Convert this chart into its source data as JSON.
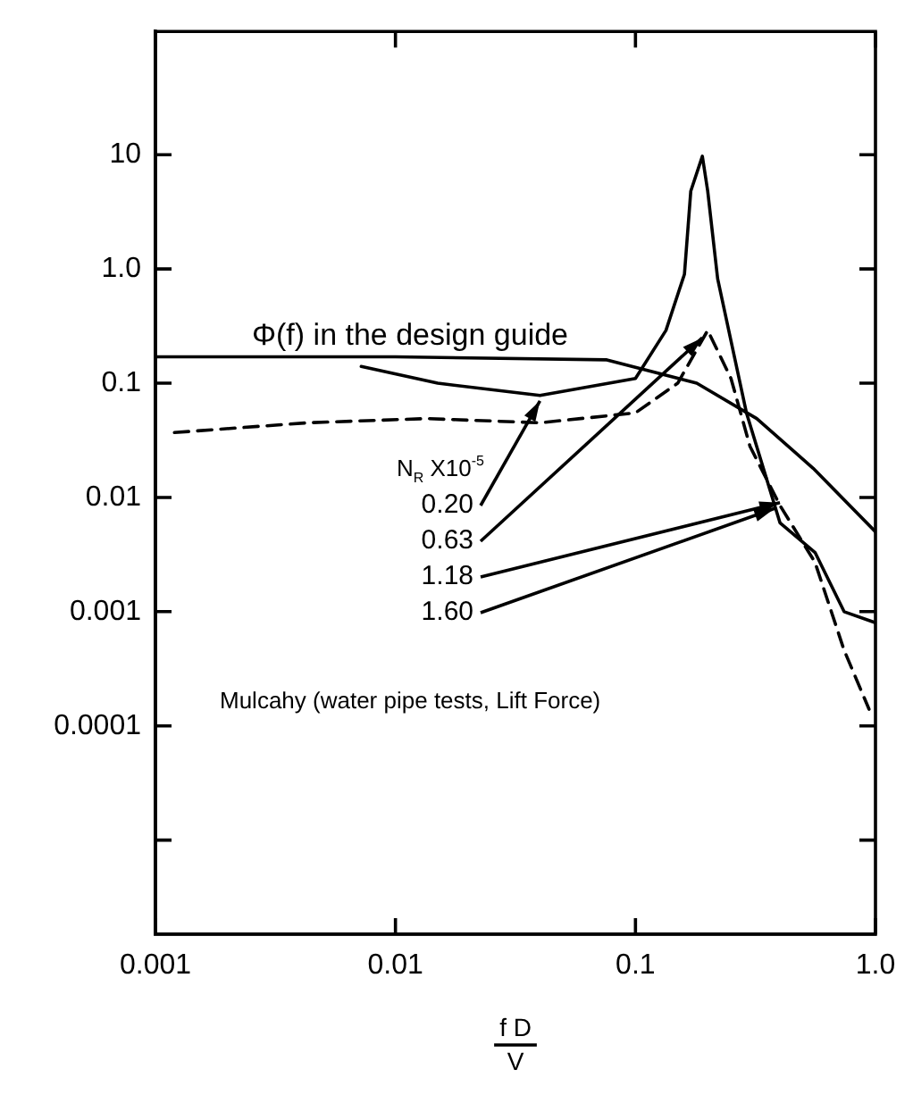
{
  "chart_data": {
    "type": "line",
    "xlabel": "f D\nV",
    "log": "xy",
    "grid": false,
    "legend": false,
    "marker": "none",
    "xlim": [
      0.001,
      1
    ],
    "xticks": [
      0.001,
      0.01,
      0.1,
      {
        "value": 1,
        "label": "1.0"
      }
    ],
    "ylim": [
      1.5e-06,
      120
    ],
    "yticks": [
      {
        "value": 1e-05,
        "label": null
      },
      0.0001,
      0.001,
      0.01,
      0.1,
      {
        "value": 1,
        "label": "1.0"
      },
      10
    ],
    "series": [
      {
        "color": "#000000",
        "line_style": "solid",
        "x": [
          0.001,
          0.01,
          0.076,
          0.18,
          0.32,
          0.55,
          1
        ],
        "values": [
          0.17,
          0.17,
          0.16,
          0.1,
          0.049,
          0.018,
          0.005
        ]
      },
      {
        "color": "#000000",
        "line_style": "solid",
        "x": [
          0.0072,
          0.015,
          0.04,
          0.1,
          0.134,
          0.16,
          0.17,
          0.19,
          0.2,
          0.22,
          0.29,
          0.4,
          0.56,
          0.74,
          1
        ],
        "values": [
          0.14,
          0.1,
          0.078,
          0.11,
          0.29,
          0.9,
          4.8,
          9.7,
          4.8,
          0.82,
          0.055,
          0.006,
          0.0033,
          0.001,
          0.0008
        ]
      },
      {
        "color": "#000000",
        "line_style": "dashed",
        "x": [
          0.0012,
          0.0043,
          0.0135,
          0.04,
          0.1,
          0.15,
          0.2,
          0.25,
          0.3,
          0.4,
          0.56,
          0.74,
          0.94
        ],
        "values": [
          0.037,
          0.045,
          0.049,
          0.045,
          0.055,
          0.1,
          0.29,
          0.11,
          0.028,
          0.0085,
          0.0027,
          0.00046,
          0.00014
        ]
      }
    ],
    "annotations": [
      {
        "text": "Φ(f) in the design guide",
        "x": 0.0115,
        "y": 0.17
      },
      "N$_{R}$ X10$^{-5}$",
      {
        "text": "0.20",
        "x": 0.04,
        "y": 0.07
      },
      {
        "text": "0.63",
        "x": 0.19,
        "y": 0.25
      },
      {
        "text": "1.18",
        "x": 0.4,
        "y": 0.009
      },
      {
        "text": "1.60",
        "x": 0.38,
        "y": 0.008
      },
      "Mulcahy (water pipe tests, Lift Force)"
    ]
  }
}
